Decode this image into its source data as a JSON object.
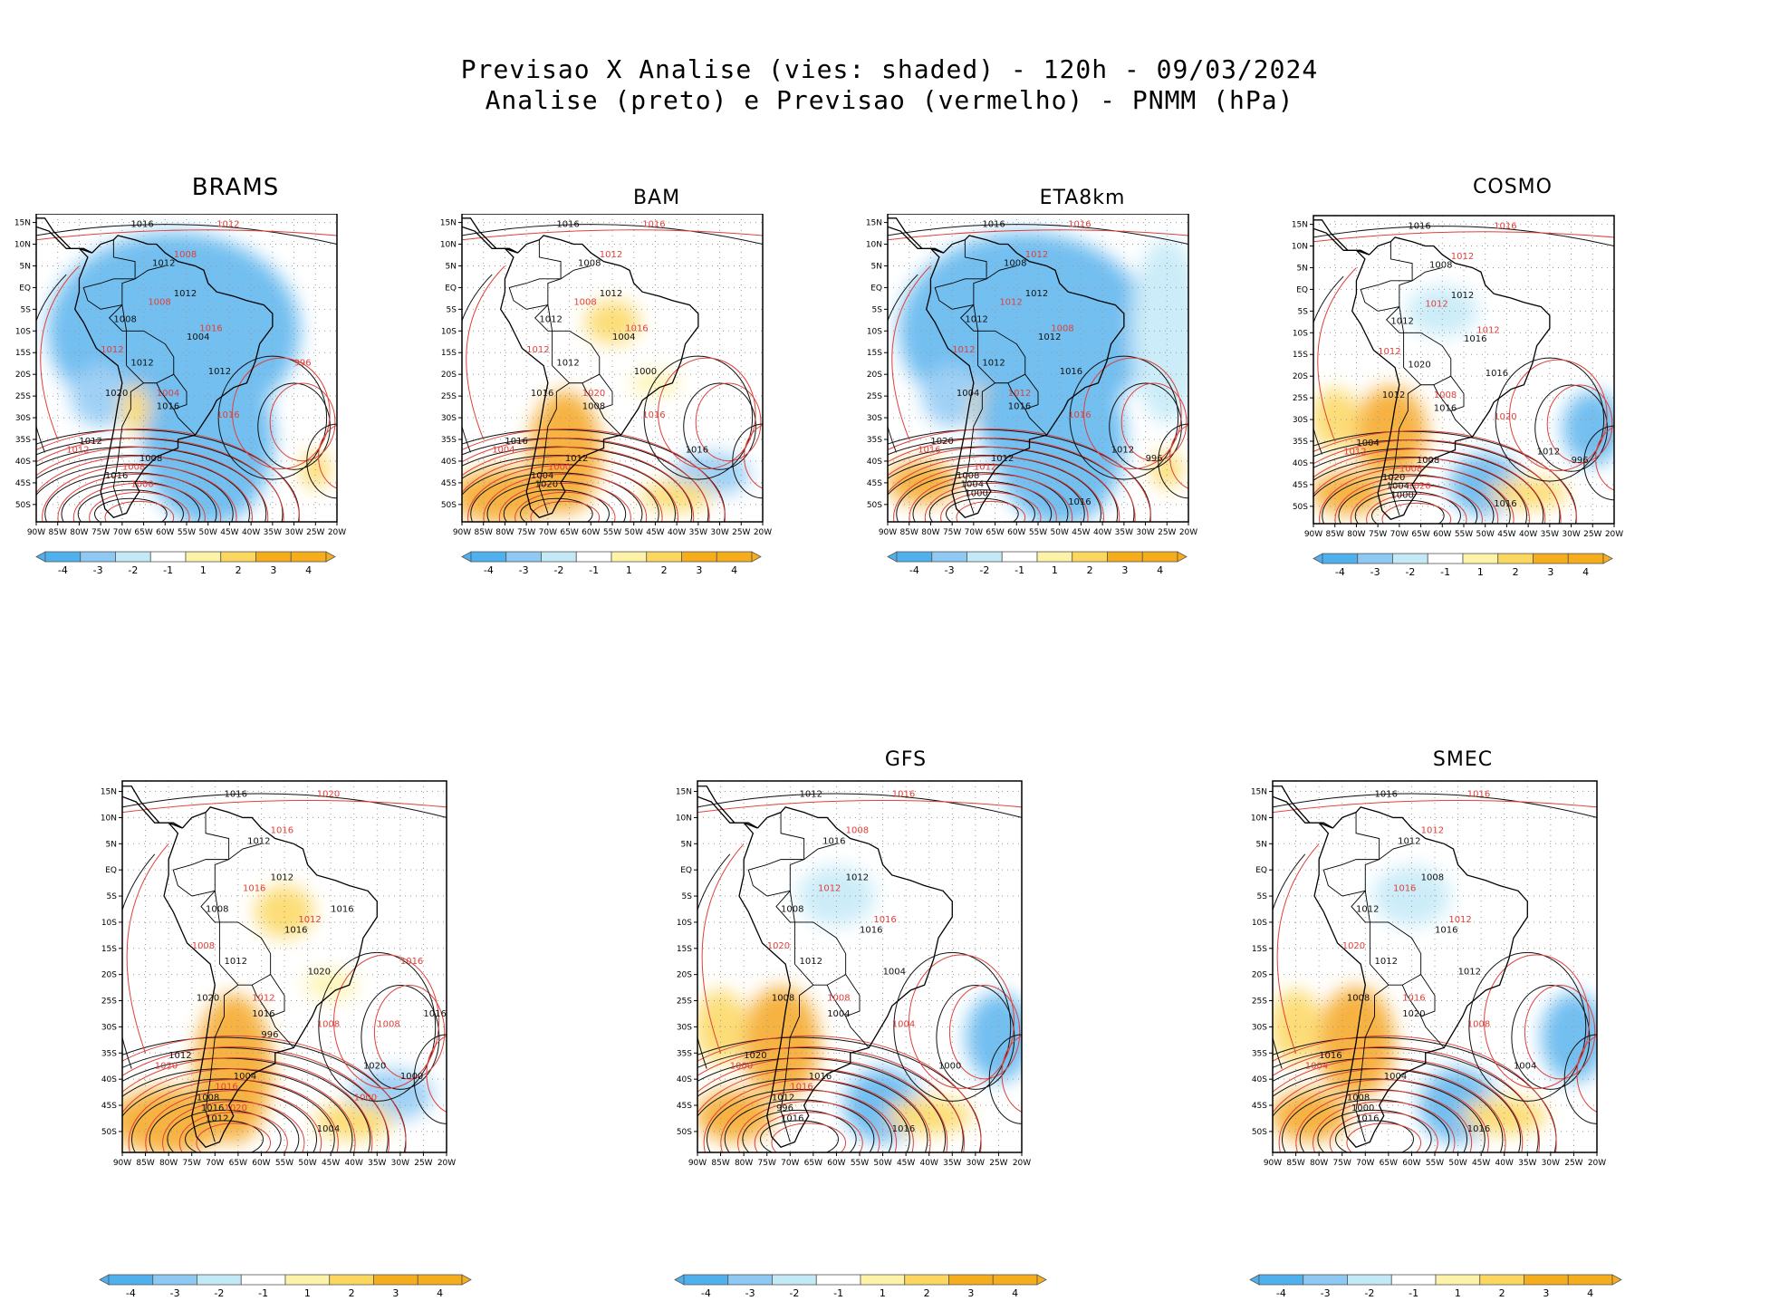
{
  "header": {
    "line1": "Previsao X Analise (vies: shaded) - 120h - 09/03/2024",
    "line2": "Analise (preto) e Previsao (vermelho) - PNMM (hPa)"
  },
  "axes": {
    "lat_labels": [
      "15N",
      "10N",
      "5N",
      "EQ",
      "5S",
      "10S",
      "15S",
      "20S",
      "25S",
      "30S",
      "35S",
      "40S",
      "45S",
      "50S"
    ],
    "lon_labels": [
      "90W",
      "85W",
      "80W",
      "75W",
      "70W",
      "65W",
      "60W",
      "55W",
      "50W",
      "45W",
      "40W",
      "35W",
      "30W",
      "25W",
      "20W"
    ]
  },
  "colorbar": {
    "labels": [
      "-4",
      "-3",
      "-2",
      "-1",
      "1",
      "2",
      "3",
      "4"
    ],
    "colors": [
      "#4fb0ee",
      "#8ec9f4",
      "#c3e9f7",
      "#ffffff",
      "#fdf3a8",
      "#fcd75f",
      "#f5ad1c",
      "#f5ad1c"
    ]
  },
  "colors": {
    "analysis": "#111111",
    "forecast": "#e0403a",
    "neg": "#5ab4ee",
    "pos": "#f5a623"
  },
  "panels": [
    {
      "id": "brams",
      "title": "BRAMS",
      "bias": "neg-strong",
      "labels_black": [
        "1016",
        "1012",
        "1012",
        "1008",
        "1004",
        "1012",
        "1020",
        "1016",
        "1012",
        "1008",
        "1016",
        "1012"
      ],
      "labels_red": [
        "1012",
        "1008",
        "1008",
        "1016",
        "1012",
        "1004",
        "1016",
        "1012",
        "1008",
        "1000",
        "996"
      ]
    },
    {
      "id": "bam",
      "title": "BAM",
      "bias": "pos-south",
      "labels_black": [
        "1016",
        "1008",
        "1012",
        "1012",
        "1004",
        "1012",
        "1016",
        "1008",
        "1016",
        "1012",
        "1004",
        "1000",
        "1016",
        "1020"
      ],
      "labels_red": [
        "1016",
        "1012",
        "1008",
        "1016",
        "1012",
        "1020",
        "1016",
        "1004",
        "1000"
      ]
    },
    {
      "id": "eta8km",
      "title": "ETA8km",
      "bias": "neg-strong",
      "labels_black": [
        "1016",
        "1008",
        "1012",
        "1012",
        "1012",
        "1012",
        "1004",
        "1016",
        "1020",
        "1012",
        "1008",
        "1016",
        "1012",
        "1004",
        "1000",
        "1016",
        "996"
      ],
      "labels_red": [
        "1016",
        "1012",
        "1012",
        "1008",
        "1012",
        "1012",
        "1016",
        "1016",
        "1012"
      ]
    },
    {
      "id": "cosmo",
      "title": "COSMO",
      "bias": "mixed",
      "labels_black": [
        "1016",
        "1008",
        "1012",
        "1012",
        "1016",
        "1020",
        "1012",
        "1016",
        "1004",
        "1008",
        "1020",
        "1016",
        "1012",
        "1004",
        "1000",
        "1016",
        "996"
      ],
      "labels_red": [
        "1016",
        "1012",
        "1012",
        "1012",
        "1012",
        "1008",
        "1020",
        "1012",
        "1008",
        "1020"
      ]
    },
    {
      "id": "model5",
      "title": "",
      "bias": "pos-south",
      "labels_black": [
        "1016",
        "1012",
        "1012",
        "1008",
        "1016",
        "1012",
        "1020",
        "1016",
        "1012",
        "1004",
        "1008",
        "1020",
        "1020",
        "1016",
        "1012",
        "1004",
        "1000",
        "996",
        "1016",
        "1016"
      ],
      "labels_red": [
        "1020",
        "1016",
        "1016",
        "1012",
        "1008",
        "1012",
        "1008",
        "1020",
        "1016",
        "1020",
        "1016",
        "1008",
        "1000"
      ]
    },
    {
      "id": "gfs",
      "title": "GFS",
      "bias": "mixed",
      "labels_black": [
        "1012",
        "1016",
        "1012",
        "1008",
        "1016",
        "1012",
        "1008",
        "1004",
        "1020",
        "1016",
        "1012",
        "1004",
        "1000",
        "996",
        "1016",
        "1016"
      ],
      "labels_red": [
        "1016",
        "1008",
        "1012",
        "1016",
        "1020",
        "1008",
        "1004",
        "1000",
        "1016"
      ]
    },
    {
      "id": "smec",
      "title": "SMEC",
      "bias": "mixed",
      "labels_black": [
        "1016",
        "1012",
        "1008",
        "1012",
        "1016",
        "1012",
        "1008",
        "1020",
        "1016",
        "1004",
        "1008",
        "1012",
        "1004",
        "1000",
        "1016",
        "1016"
      ],
      "labels_red": [
        "1016",
        "1012",
        "1016",
        "1012",
        "1020",
        "1016",
        "1008",
        "1004"
      ]
    }
  ]
}
